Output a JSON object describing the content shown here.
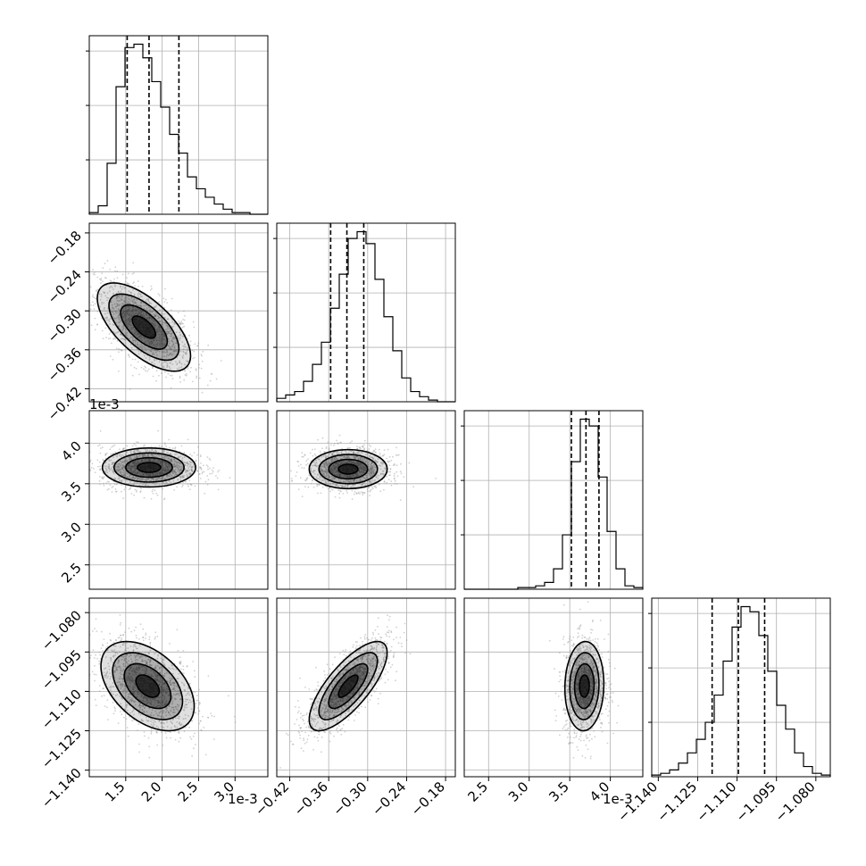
{
  "chart_data": {
    "type": "corner",
    "grid": true,
    "n_params": 4,
    "params": [
      {
        "range": [
          1.0,
          3.45
        ],
        "ticks": [
          1.5,
          2.0,
          2.5,
          3.0
        ],
        "tick_labels": [
          "1.5",
          "2.0",
          "2.5",
          "3.0"
        ],
        "offset": "1e-3",
        "quantiles": [
          1.52,
          1.82,
          2.23
        ],
        "hist_counts": [
          1,
          5,
          30,
          75,
          98,
          100,
          92,
          78,
          63,
          47,
          36,
          22,
          15,
          10,
          6,
          3,
          1,
          1,
          0,
          0
        ],
        "hist_yticks": [
          0.32,
          0.64,
          0.96
        ]
      },
      {
        "range": [
          -0.44,
          -0.165
        ],
        "ticks": [
          -0.42,
          -0.36,
          -0.3,
          -0.24,
          -0.18
        ],
        "tick_labels": [
          "−0.42",
          "−0.36",
          "−0.30",
          "−0.24",
          "−0.18"
        ],
        "offset": "",
        "quantiles": [
          -0.357,
          -0.332,
          -0.306
        ],
        "hist_counts": [
          2,
          4,
          6,
          12,
          22,
          35,
          55,
          75,
          96,
          100,
          93,
          72,
          50,
          30,
          14,
          6,
          3,
          1,
          0,
          0
        ],
        "hist_yticks": [
          0.32,
          0.64,
          0.96
        ]
      },
      {
        "range": [
          2.2,
          4.4
        ],
        "ticks": [
          2.5,
          3.0,
          3.5,
          4.0
        ],
        "tick_labels": [
          "2.5",
          "3.0",
          "3.5",
          "4.0"
        ],
        "offset": "1e-3",
        "quantiles": [
          3.52,
          3.7,
          3.86
        ],
        "hist_counts": [
          0,
          0,
          0,
          0,
          0,
          0,
          1,
          1,
          2,
          4,
          12,
          32,
          75,
          100,
          96,
          66,
          34,
          12,
          2,
          1
        ],
        "hist_yticks": [
          0.32,
          0.64,
          0.96
        ]
      },
      {
        "range": [
          -1.1425,
          -1.0745
        ],
        "ticks": [
          -1.14,
          -1.125,
          -1.11,
          -1.095,
          -1.08
        ],
        "tick_labels": [
          "−1.140",
          "−1.125",
          "−1.110",
          "−1.095",
          "−1.080"
        ],
        "offset": "",
        "quantiles": [
          -1.1195,
          -1.1095,
          -1.0995
        ],
        "hist_counts": [
          1,
          2,
          4,
          8,
          14,
          22,
          32,
          48,
          68,
          88,
          100,
          97,
          83,
          62,
          42,
          28,
          14,
          6,
          2,
          1
        ],
        "hist_yticks": [
          0.32,
          0.64,
          0.96
        ]
      }
    ],
    "pairs": [
      {
        "x": 0,
        "y": 1,
        "center": [
          1.75,
          -0.325
        ],
        "sigma": [
          0.32,
          0.034
        ],
        "rho": -0.65
      },
      {
        "x": 0,
        "y": 2,
        "center": [
          1.82,
          3.7
        ],
        "sigma": [
          0.32,
          0.12
        ],
        "rho": 0.0
      },
      {
        "x": 1,
        "y": 2,
        "center": [
          -0.33,
          3.68
        ],
        "sigma": [
          0.03,
          0.12
        ],
        "rho": 0.0
      },
      {
        "x": 0,
        "y": 3,
        "center": [
          1.8,
          -1.108
        ],
        "sigma": [
          0.32,
          0.0085
        ],
        "rho": -0.45
      },
      {
        "x": 1,
        "y": 3,
        "center": [
          -0.33,
          -1.108
        ],
        "sigma": [
          0.03,
          0.0085
        ],
        "rho": 0.75
      },
      {
        "x": 2,
        "y": 3,
        "center": [
          3.68,
          -1.108
        ],
        "sigma": [
          0.12,
          0.0085
        ],
        "rho": 0.05
      }
    ],
    "contour_levels_sigma": [
      0.5,
      1.0,
      1.5,
      2.0
    ],
    "colors": {
      "line": "#000000",
      "grid": "#b0b0b0",
      "points": "#9a9a9a",
      "density": "#000000"
    }
  }
}
